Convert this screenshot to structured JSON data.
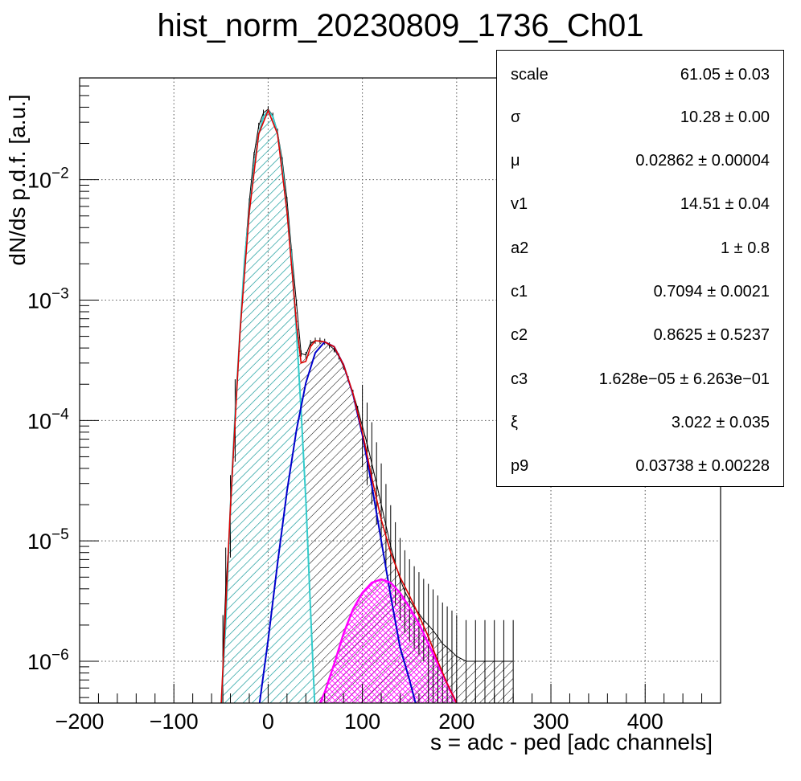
{
  "title": "hist_norm_20230809_1736_Ch01",
  "xlabel": "s = adc - ped [adc channels]",
  "ylabel": "dN/ds p.d.f. [a.u.]",
  "stats": [
    {
      "name": "scale",
      "value": "61.05 ± 0.03"
    },
    {
      "name": "σ",
      "value": "10.28 ± 0.00"
    },
    {
      "name": "μ",
      "value": "0.02862 ± 0.00004"
    },
    {
      "name": "v1",
      "value": "14.51 ± 0.04"
    },
    {
      "name": "a2",
      "value": "1 ± 0.8"
    },
    {
      "name": "c1",
      "value": "0.7094 ± 0.0021"
    },
    {
      "name": "c2",
      "value": "0.8625 ± 0.5237"
    },
    {
      "name": "c3",
      "value": "1.628e−05 ± 6.263e−01"
    },
    {
      "name": "ξ",
      "value": "3.022 ± 0.035"
    },
    {
      "name": "p9",
      "value": "0.03738 ± 0.00228"
    }
  ],
  "chart_data": {
    "type": "line",
    "title": "hist_norm_20230809_1736_Ch01",
    "xlabel": "s = adc - ped [adc channels]",
    "ylabel": "dN/ds p.d.f. [a.u.]",
    "xlim": [
      -200,
      480
    ],
    "ylim": [
      4.5e-07,
      0.07
    ],
    "yscale": "log",
    "grid": true,
    "xticks": [
      -200,
      -100,
      0,
      100,
      200,
      300,
      400
    ],
    "xtick_labels": [
      "−200",
      "−100",
      "0",
      "100",
      "200",
      "300",
      "400"
    ],
    "yticks": [
      {
        "value": 1e-06,
        "base": "10",
        "exp": "−6"
      },
      {
        "value": 1e-05,
        "base": "10",
        "exp": "−5"
      },
      {
        "value": 0.0001,
        "base": "10",
        "exp": "−4"
      },
      {
        "value": 0.001,
        "base": "10",
        "exp": "−3"
      },
      {
        "value": 0.01,
        "base": "10",
        "exp": "−2"
      }
    ],
    "series": [
      {
        "key": "data",
        "color": "#000000",
        "x": [
          -48,
          -45,
          -40,
          -35,
          -30,
          -25,
          -20,
          -15,
          -10,
          -5,
          0,
          5,
          10,
          15,
          20,
          25,
          30,
          35,
          40,
          45,
          50,
          55,
          60,
          65,
          70,
          75,
          80,
          85,
          90,
          95,
          100,
          105,
          110,
          115,
          120,
          125,
          130,
          135,
          140,
          145,
          150,
          155,
          160,
          165,
          170,
          175,
          180,
          185,
          190,
          195,
          200,
          210,
          220,
          230,
          240,
          250,
          260
        ],
        "y": [
          1.1e-06,
          4e-06,
          1.6e-05,
          0.0001,
          0.0005,
          0.0022,
          0.0066,
          0.016,
          0.028,
          0.036,
          0.0385,
          0.034,
          0.025,
          0.0145,
          0.0068,
          0.0025,
          0.00095,
          0.00036,
          0.00035,
          0.00044,
          0.00046,
          0.00046,
          0.00045,
          0.00042,
          0.00039,
          0.00034,
          0.00028,
          0.00022,
          0.00017,
          0.000125,
          9e-05,
          6.4e-05,
          4.4e-05,
          3e-05,
          2e-05,
          1.35e-05,
          9e-06,
          6.5e-06,
          4.8e-06,
          3.8e-06,
          3.2e-06,
          2.8e-06,
          2.5e-06,
          2.2e-06,
          2e-06,
          1.8e-06,
          1.6e-06,
          1.4e-06,
          1.3e-06,
          1.2e-06,
          1.1e-06,
          1e-06,
          1e-06,
          1e-06,
          1e-06,
          1e-06,
          1e-06
        ]
      },
      {
        "key": "pedestal",
        "color": "#33cccc",
        "x": [
          -50,
          -45,
          -40,
          -35,
          -30,
          -25,
          -20,
          -15,
          -10,
          -5,
          0,
          5,
          10,
          15,
          20,
          25,
          30,
          35,
          40,
          45,
          50
        ],
        "y": [
          4e-07,
          2.1e-06,
          1.9e-05,
          0.000114,
          0.000527,
          0.00216,
          0.0054,
          0.0127,
          0.024,
          0.0334,
          0.0375,
          0.0334,
          0.024,
          0.0127,
          0.0054,
          0.00216,
          0.00055,
          0.00012,
          2.2e-05,
          2.6e-06,
          3.5e-07
        ]
      },
      {
        "key": "one-pe",
        "color": "#0000cc",
        "x": [
          -10,
          0,
          10,
          20,
          30,
          40,
          50,
          60,
          70,
          80,
          90,
          100,
          110,
          120,
          130,
          140,
          150,
          160
        ],
        "y": [
          4e-07,
          1.5e-06,
          6.5e-06,
          2.6e-05,
          8.3e-05,
          0.000205,
          0.000365,
          0.00045,
          0.00041,
          0.00029,
          0.000165,
          7.6e-05,
          2.9e-05,
          1e-05,
          3.5e-06,
          1.3e-06,
          7e-07,
          3.5e-07
        ]
      },
      {
        "key": "two-pe",
        "color": "#ff00ff",
        "x": [
          55,
          60,
          70,
          80,
          90,
          100,
          110,
          120,
          130,
          140,
          150,
          160,
          170,
          180,
          190,
          200
        ],
        "y": [
          4.5e-07,
          5.5e-07,
          9.5e-07,
          1.7e-06,
          2.7e-06,
          3.7e-06,
          4.5e-06,
          4.8e-06,
          4.5e-06,
          3.7e-06,
          2.8e-06,
          2.05e-06,
          1.4e-06,
          9.5e-07,
          6.5e-07,
          4.5e-07
        ]
      },
      {
        "key": "total-fit",
        "color": "#dd0000",
        "x": [
          -50,
          -40,
          -30,
          -20,
          -10,
          0,
          10,
          20,
          30,
          35,
          40,
          45,
          50,
          60,
          70,
          80,
          90,
          100,
          110,
          120,
          130,
          140,
          150,
          160,
          170,
          180,
          190,
          200
        ],
        "y": [
          4e-07,
          1.9e-05,
          0.000527,
          0.0054,
          0.024,
          0.0375,
          0.024,
          0.0054,
          0.00064,
          0.0003,
          0.00031,
          0.00041,
          0.00046,
          0.00045,
          0.00041,
          0.00029,
          0.000168,
          8e-05,
          3.35e-05,
          1.5e-05,
          8e-06,
          5e-06,
          3.5e-06,
          2.4e-06,
          1.6e-06,
          1e-06,
          6.5e-07,
          4.5e-07
        ]
      }
    ]
  }
}
